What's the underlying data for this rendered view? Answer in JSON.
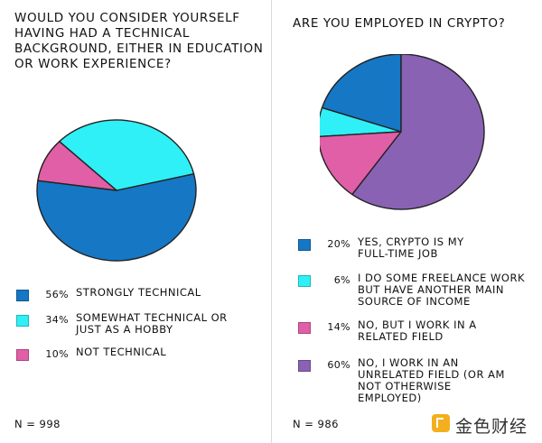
{
  "watermark": "金色财经",
  "colors": {
    "strong_blue": "#1677c4",
    "cyan": "#2ff0f6",
    "pink": "#e15fa6",
    "purple": "#8a62b3",
    "outline": "#222222"
  },
  "chart_data": [
    {
      "type": "pie",
      "title": "Would you consider yourself having had a technical background, either in education or work experience?",
      "n_label": "N = 998",
      "slices": [
        {
          "label": "Strongly technical",
          "value": 56,
          "pct_label": "56%",
          "color": "#1677c4"
        },
        {
          "label": "Somewhat technical or just as a hobby",
          "value": 34,
          "pct_label": "34%",
          "color": "#2ff0f6"
        },
        {
          "label": "Not technical",
          "value": 10,
          "pct_label": "10%",
          "color": "#e15fa6"
        }
      ],
      "legend_position": "bottom"
    },
    {
      "type": "pie",
      "title": "Are you employed in crypto?",
      "n_label": "N = 986",
      "slices": [
        {
          "label": "Yes, crypto is my full-time job",
          "value": 20,
          "pct_label": "20%",
          "color": "#1677c4"
        },
        {
          "label": "I do some freelance work but have another main source of income",
          "value": 6,
          "pct_label": "6%",
          "color": "#2ff0f6"
        },
        {
          "label": "No, but I work in a related field",
          "value": 14,
          "pct_label": "14%",
          "color": "#e15fa6"
        },
        {
          "label": "No, I work in an unrelated field (or am not otherwise employed)",
          "value": 60,
          "pct_label": "60%",
          "color": "#8a62b3"
        }
      ],
      "legend_position": "bottom"
    }
  ]
}
